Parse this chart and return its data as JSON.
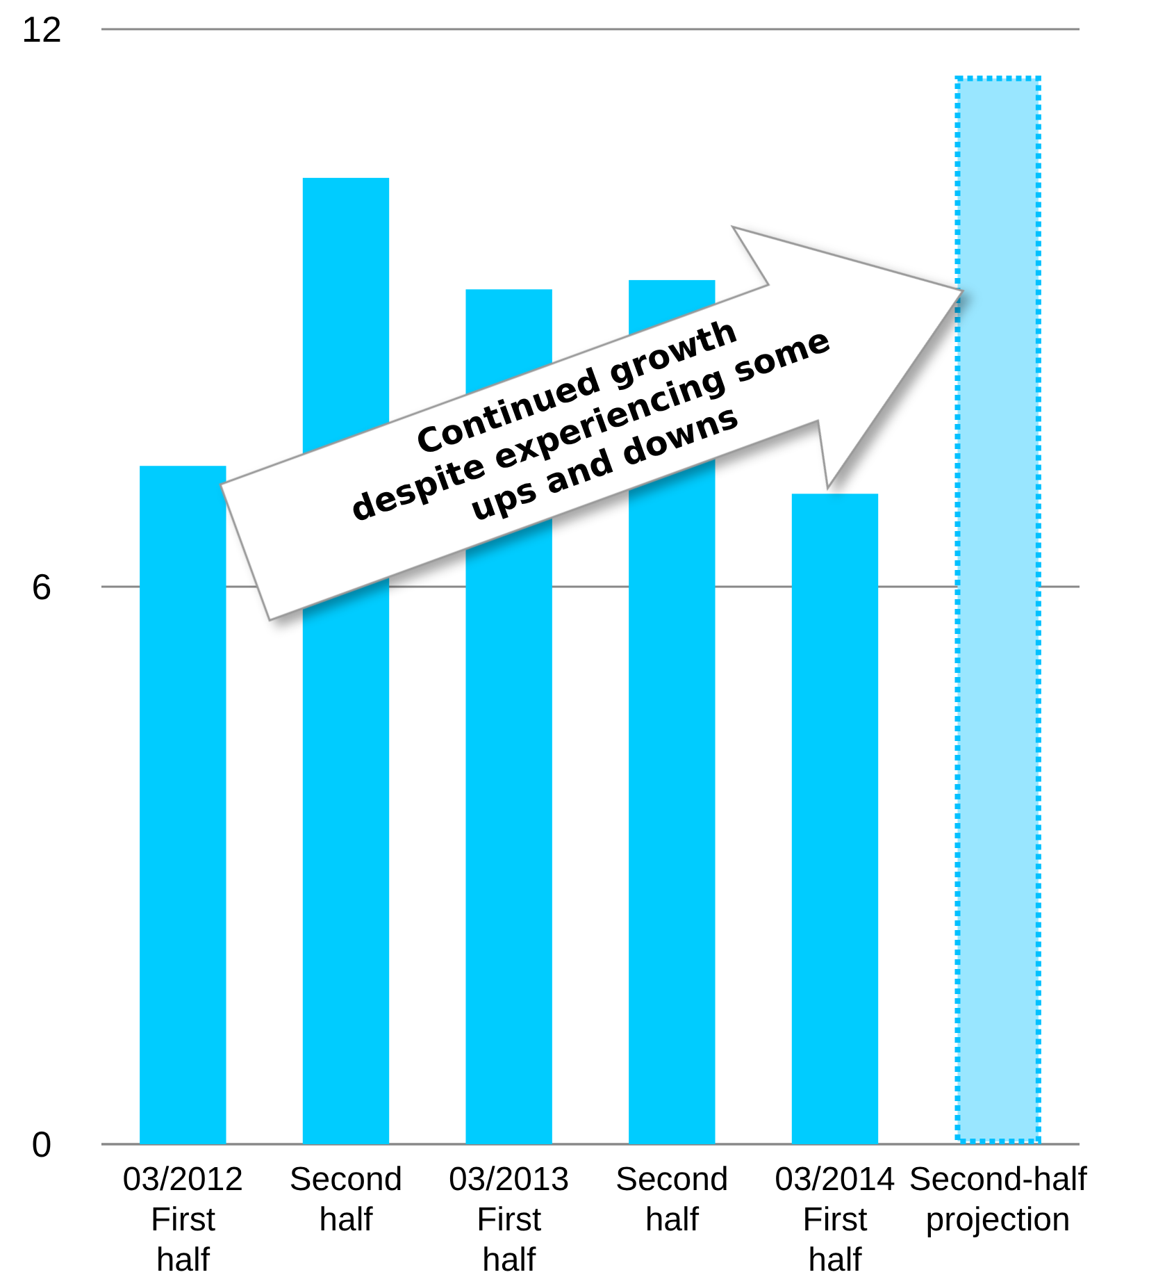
{
  "chart_data": {
    "type": "bar",
    "categories": [
      "03/2012\nFirst\nhalf",
      "Second\nhalf",
      "03/2013\nFirst\nhalf",
      "Second\nhalf",
      "03/2014\nFirst\nhalf",
      "Second-half\nprojection"
    ],
    "series": [
      {
        "color": "#00ccff",
        "values": [
          7.3,
          10.4,
          9.2,
          9.3,
          7.0,
          null
        ]
      },
      {
        "color": "#99e6ff",
        "line_style": "dotted",
        "values": [
          null,
          null,
          null,
          null,
          null,
          11.5
        ]
      }
    ],
    "ylim": [
      0,
      12
    ],
    "yticks": [
      0,
      6,
      12
    ],
    "grid": "y",
    "annotations": [
      "Continued growth\ndespite experiencing some\nups and downs"
    ]
  }
}
